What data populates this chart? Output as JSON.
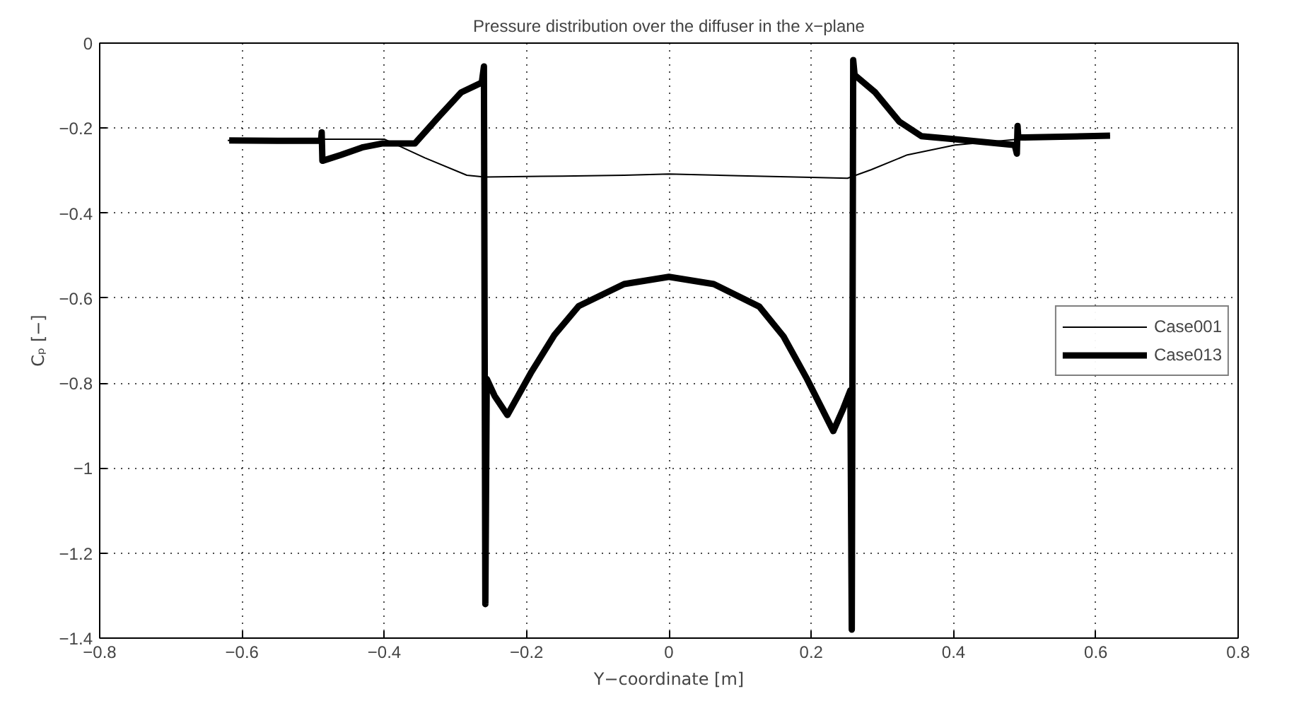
{
  "chart_data": {
    "type": "line",
    "title": "Pressure distribution over the diffuser in the x−plane",
    "xlabel": "Y−coordinate [m]",
    "ylabel": "Cₚ [−]",
    "xlim": [
      -0.8,
      0.8
    ],
    "ylim": [
      -1.4,
      0
    ],
    "xticks": [
      {
        "value": -0.8,
        "label": "−0.8"
      },
      {
        "value": -0.6,
        "label": "−0.6"
      },
      {
        "value": -0.4,
        "label": "−0.4"
      },
      {
        "value": -0.2,
        "label": "−0.2"
      },
      0,
      0.2,
      0.4,
      0.6,
      0.8
    ],
    "yticks": [
      {
        "value": -1.4,
        "label": "−1.4"
      },
      {
        "value": -1.2,
        "label": "−1.2"
      },
      {
        "value": -1,
        "label": "−1"
      },
      {
        "value": -0.8,
        "label": "−0.8"
      },
      {
        "value": -0.6,
        "label": "−0.6"
      },
      {
        "value": -0.4,
        "label": "−0.4"
      },
      {
        "value": -0.2,
        "label": "−0.2"
      },
      0
    ],
    "grid": true,
    "legend": "right",
    "series": [
      {
        "name": "Case001",
        "color": "#000000",
        "x": [
          -0.62,
          -0.5,
          -0.4,
          -0.343,
          -0.284,
          -0.259,
          -0.15,
          -0.063,
          0,
          0.1,
          0.2,
          0.251,
          0.284,
          0.335,
          0.402,
          0.5,
          0.62
        ],
        "values": [
          -0.229,
          -0.226,
          -0.226,
          -0.27,
          -0.311,
          -0.315,
          -0.313,
          -0.311,
          -0.308,
          -0.312,
          -0.316,
          -0.318,
          -0.298,
          -0.263,
          -0.24,
          -0.225,
          -0.218
        ]
      },
      {
        "name": "Case013",
        "color": "#000000",
        "x": [
          -0.618,
          -0.55,
          -0.489,
          -0.488,
          -0.487,
          -0.461,
          -0.43,
          -0.402,
          -0.357,
          -0.324,
          -0.292,
          -0.263,
          -0.26,
          -0.258,
          -0.256,
          -0.245,
          -0.227,
          -0.194,
          -0.161,
          -0.127,
          -0.063,
          0,
          0.063,
          0.127,
          0.161,
          0.194,
          0.231,
          0.245,
          0.255,
          0.257,
          0.259,
          0.261,
          0.29,
          0.324,
          0.355,
          0.402,
          0.486,
          0.489,
          0.49,
          0.491,
          0.5,
          0.62
        ],
        "values": [
          -0.229,
          -0.23,
          -0.23,
          -0.21,
          -0.277,
          -0.263,
          -0.245,
          -0.236,
          -0.236,
          -0.174,
          -0.116,
          -0.093,
          -0.055,
          -1.32,
          -0.79,
          -0.83,
          -0.875,
          -0.776,
          -0.687,
          -0.619,
          -0.567,
          -0.55,
          -0.567,
          -0.62,
          -0.69,
          -0.79,
          -0.913,
          -0.86,
          -0.817,
          -1.38,
          -0.04,
          -0.075,
          -0.116,
          -0.185,
          -0.219,
          -0.226,
          -0.24,
          -0.26,
          -0.195,
          -0.222,
          -0.222,
          -0.218
        ]
      }
    ]
  }
}
